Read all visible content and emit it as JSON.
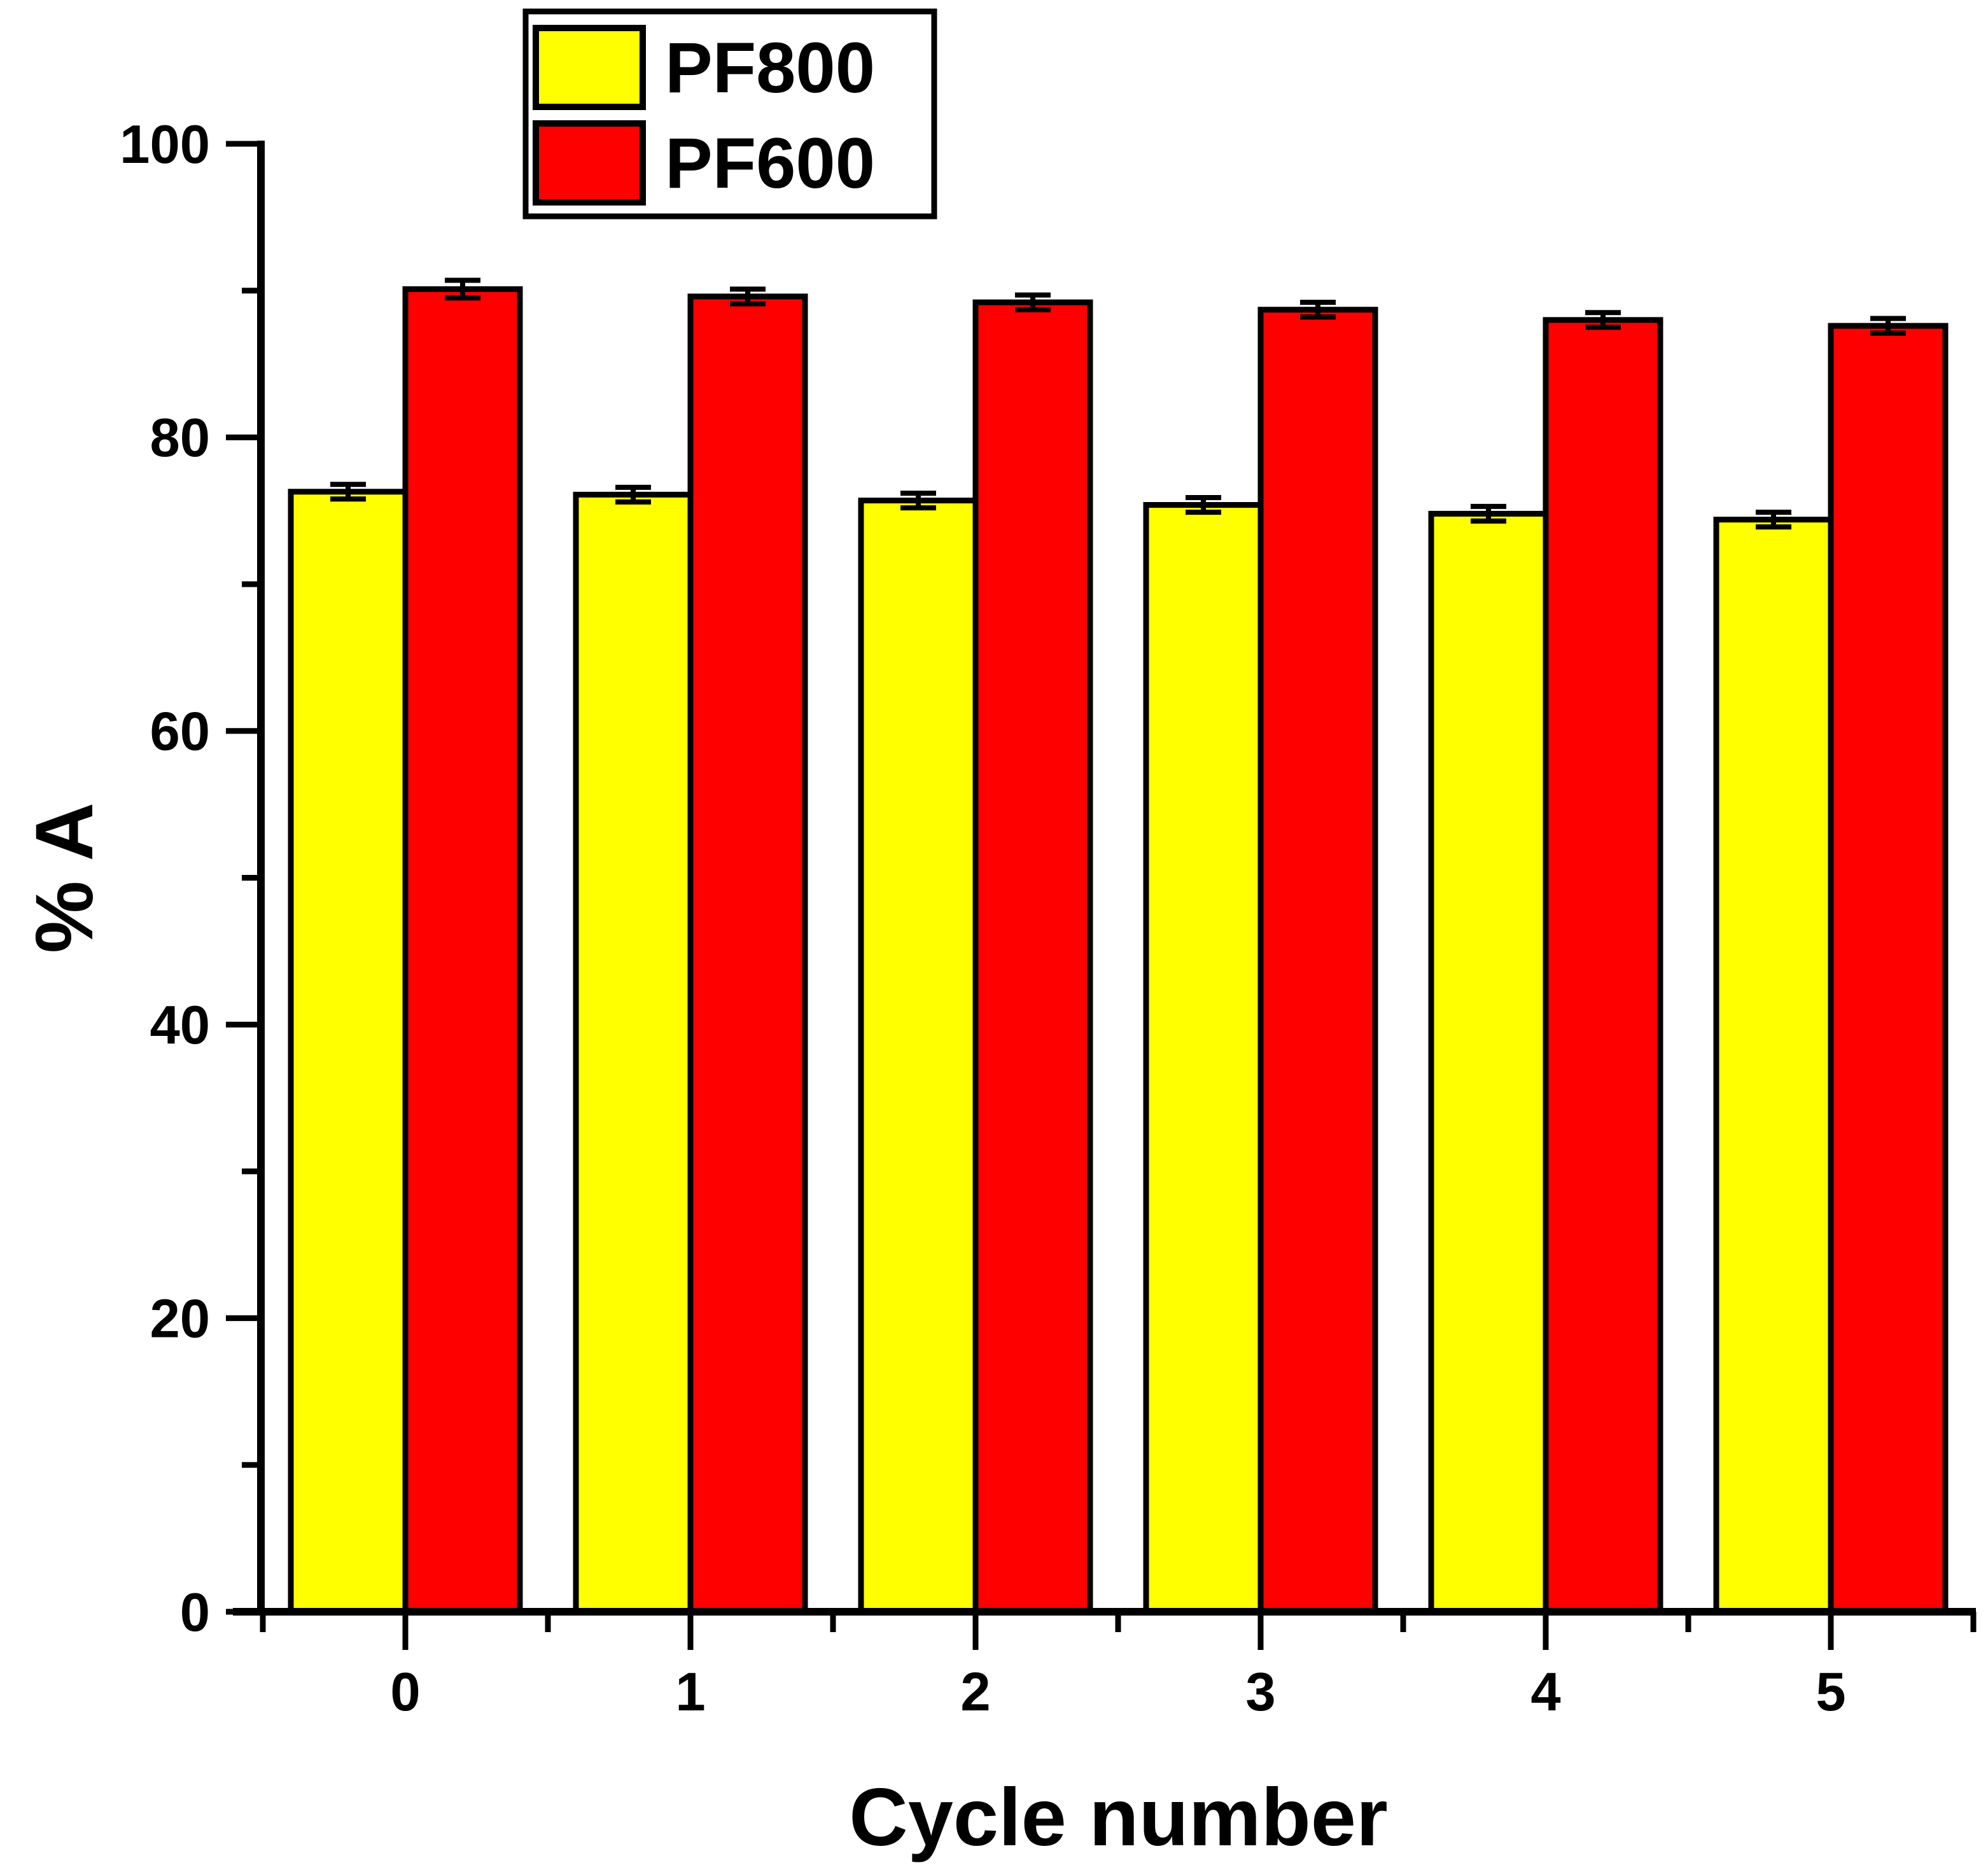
{
  "chart_data": {
    "type": "bar",
    "title": "",
    "xlabel": "Cycle number",
    "ylabel": "% A",
    "categories": [
      "0",
      "1",
      "2",
      "3",
      "4",
      "5"
    ],
    "series": [
      {
        "name": "PF800",
        "color": "#FFFF00",
        "values": [
          76.3,
          76.1,
          75.7,
          75.4,
          74.8,
          74.4
        ],
        "errors": [
          0.5,
          0.5,
          0.5,
          0.5,
          0.5,
          0.5
        ]
      },
      {
        "name": "PF600",
        "color": "#FF0000",
        "values": [
          90.1,
          89.6,
          89.2,
          88.7,
          88.0,
          87.6
        ],
        "errors": [
          0.6,
          0.5,
          0.5,
          0.5,
          0.5,
          0.5
        ]
      }
    ],
    "ylim": [
      0,
      100
    ],
    "yticks_major": [
      0,
      20,
      40,
      60,
      80,
      100
    ],
    "yticks_minor": [
      10,
      30,
      50,
      70,
      90
    ],
    "xticks_minor_offsets": [
      -0.5,
      0.5,
      1.5,
      2.5,
      3.5,
      4.5,
      5.5
    ],
    "grid": false,
    "legend": {
      "position": "top-inside",
      "items": [
        {
          "label": "PF800",
          "color": "#FFFF00"
        },
        {
          "label": "PF600",
          "color": "#FF0000"
        }
      ]
    },
    "colors": {
      "axis": "#000000",
      "bar_outline": "#000000",
      "error_bar": "#000000",
      "background": "#FFFFFF",
      "legend_border": "#000000"
    }
  }
}
